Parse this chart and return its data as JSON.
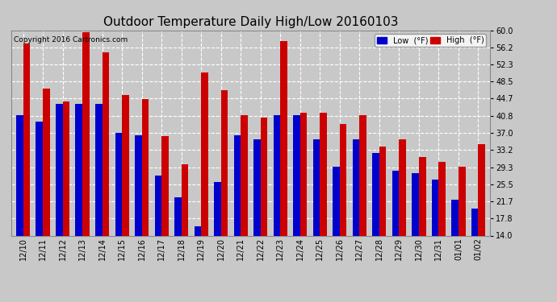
{
  "title": "Outdoor Temperature Daily High/Low 20160103",
  "copyright": "Copyright 2016 Cartronics.com",
  "categories": [
    "12/10",
    "12/11",
    "12/12",
    "12/13",
    "12/14",
    "12/15",
    "12/16",
    "12/17",
    "12/18",
    "12/19",
    "12/20",
    "12/21",
    "12/22",
    "12/23",
    "12/24",
    "12/25",
    "12/26",
    "12/27",
    "12/28",
    "12/29",
    "12/30",
    "12/31",
    "01/01",
    "01/02"
  ],
  "high": [
    57.0,
    47.0,
    44.0,
    59.5,
    55.0,
    45.5,
    44.5,
    36.2,
    30.0,
    50.5,
    46.5,
    41.0,
    40.5,
    57.5,
    41.5,
    41.5,
    39.0,
    41.0,
    34.0,
    35.5,
    31.5,
    30.5,
    29.5,
    34.5
  ],
  "low": [
    41.0,
    39.5,
    43.5,
    43.5,
    43.5,
    37.0,
    36.5,
    27.5,
    22.5,
    16.0,
    26.0,
    36.5,
    35.5,
    41.0,
    41.0,
    35.5,
    29.5,
    35.5,
    32.5,
    28.5,
    28.0,
    26.5,
    22.0,
    20.0
  ],
  "ylim_min": 14.0,
  "ylim_max": 60.0,
  "yticks": [
    14.0,
    17.8,
    21.7,
    25.5,
    29.3,
    33.2,
    37.0,
    40.8,
    44.7,
    48.5,
    52.3,
    56.2,
    60.0
  ],
  "bar_width": 0.35,
  "bar_color_low": "#0000cc",
  "bar_color_high": "#cc0000",
  "bg_color": "#c8c8c8",
  "plot_bg_color": "#c8c8c8",
  "grid_color": "#ffffff",
  "title_fontsize": 11,
  "tick_fontsize": 7,
  "legend_low_label": "Low  (°F)",
  "legend_high_label": "High  (°F)"
}
